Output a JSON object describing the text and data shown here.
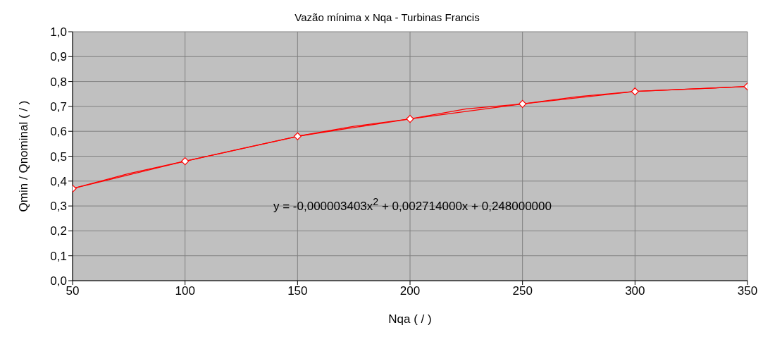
{
  "chart_data": {
    "type": "line",
    "title": "Vazão mínima x Nqa - Turbinas Francis",
    "xlabel": "Nqa ( / )",
    "ylabel": "Qmin / Qnominal ( / )",
    "x": [
      50,
      100,
      150,
      200,
      250,
      300,
      350
    ],
    "series": [
      {
        "color": "#ff0000",
        "marker": "diamond",
        "values": [
          0.37,
          0.48,
          0.58,
          0.65,
          0.71,
          0.76,
          0.78
        ]
      },
      {
        "type": "line",
        "color": "#ff0000",
        "marker": "none",
        "x": [
          50,
          75,
          100,
          125,
          150,
          175,
          200,
          225,
          250,
          275,
          300,
          325,
          350
        ],
        "values": [
          0.37,
          0.43,
          0.48,
          0.53,
          0.58,
          0.62,
          0.65,
          0.69,
          0.71,
          0.74,
          0.76,
          0.77,
          0.78
        ]
      }
    ],
    "xlim": [
      50,
      350
    ],
    "xticks": [
      50,
      100,
      150,
      200,
      250,
      300,
      350
    ],
    "ylim": [
      0,
      1
    ],
    "yticks": [
      {
        "value": 0,
        "label": "0,0"
      },
      {
        "value": 0.1,
        "label": "0,1"
      },
      {
        "value": 0.2,
        "label": "0,2"
      },
      {
        "value": 0.3,
        "label": "0,3"
      },
      {
        "value": 0.4,
        "label": "0,4"
      },
      {
        "value": 0.5,
        "label": "0,5"
      },
      {
        "value": 0.6,
        "label": "0,6"
      },
      {
        "value": 0.7,
        "label": "0,7"
      },
      {
        "value": 0.8,
        "label": "0,8"
      },
      {
        "value": 0.9,
        "label": "0,9"
      },
      {
        "value": 1,
        "label": "1,0"
      }
    ],
    "grid": true,
    "annotations": [
      "y = -0,000003403x$^{2}$ + 0,002714000x + 0,248000000"
    ]
  }
}
